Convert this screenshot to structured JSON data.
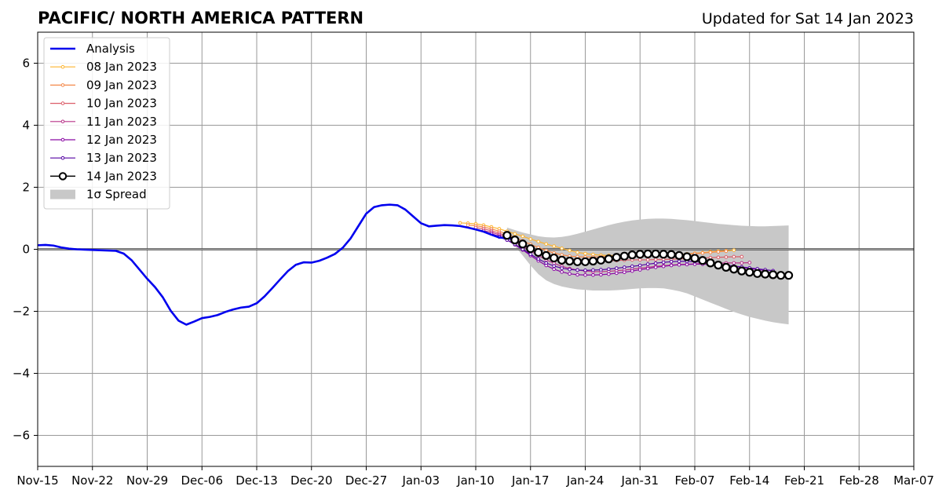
{
  "title": "PACIFIC/ NORTH AMERICA PATTERN",
  "subtitle": "Updated for Sat 14 Jan 2023",
  "chart_data": {
    "type": "line",
    "title": "PACIFIC/ NORTH AMERICA PATTERN",
    "subtitle": "Updated for Sat 14 Jan 2023",
    "xlabel": "",
    "ylabel": "",
    "xlim": [
      "2022-11-15",
      "2023-03-07"
    ],
    "ylim": [
      -7,
      7
    ],
    "x_ticks": [
      "Nov-15",
      "Nov-22",
      "Nov-29",
      "Dec-06",
      "Dec-13",
      "Dec-20",
      "Dec-27",
      "Jan-03",
      "Jan-10",
      "Jan-17",
      "Jan-24",
      "Jan-31",
      "Feb-07",
      "Feb-14",
      "Feb-21",
      "Feb-28",
      "Mar-07"
    ],
    "y_ticks": [
      "6",
      "4",
      "2",
      "0",
      "−2",
      "−4",
      "−6"
    ],
    "y_tick_values": [
      6,
      4,
      2,
      0,
      -2,
      -4,
      -6
    ],
    "grid": true,
    "legend_position": "top-left",
    "analysis": {
      "name": "Analysis",
      "color": "#0000ee",
      "start": "2022-11-15",
      "step_days": 1,
      "values": [
        0.13,
        0.14,
        0.12,
        0.06,
        0.02,
        0,
        -0.01,
        -0.02,
        -0.03,
        -0.04,
        -0.05,
        -0.14,
        -0.35,
        -0.65,
        -0.95,
        -1.22,
        -1.55,
        -1.98,
        -2.3,
        -2.43,
        -2.33,
        -2.22,
        -2.18,
        -2.12,
        -2.02,
        -1.94,
        -1.88,
        -1.85,
        -1.74,
        -1.52,
        -1.25,
        -0.97,
        -0.7,
        -0.5,
        -0.42,
        -0.43,
        -0.37,
        -0.27,
        -0.15,
        0.05,
        0.35,
        0.75,
        1.15,
        1.36,
        1.42,
        1.44,
        1.42,
        1.28,
        1.06,
        0.84,
        0.74,
        0.76,
        0.78,
        0.77,
        0.75,
        0.7,
        0.64,
        0.57,
        0.47,
        0.38,
        0.36,
        0.33
      ]
    },
    "forecasts": [
      {
        "name": "08 Jan 2023",
        "color": "#fdb42f",
        "start": "2023-01-08",
        "values": [
          0.85,
          0.84,
          0.82,
          0.78,
          0.72,
          0.66,
          0.58,
          0.5,
          0.42,
          0.33,
          0.25,
          0.17,
          0.1,
          0.03,
          -0.04,
          -0.1,
          -0.14,
          -0.17,
          -0.19,
          -0.2,
          -0.2,
          -0.19,
          -0.18,
          -0.17,
          -0.16,
          -0.16,
          -0.16,
          -0.16,
          -0.16,
          -0.15,
          -0.13,
          -0.11,
          -0.08,
          -0.06,
          -0.05,
          -0.03
        ]
      },
      {
        "name": "09 Jan 2023",
        "color": "#f48849",
        "start": "2023-01-09",
        "values": [
          0.78,
          0.76,
          0.72,
          0.66,
          0.58,
          0.49,
          0.38,
          0.27,
          0.16,
          0.06,
          -0.04,
          -0.12,
          -0.18,
          -0.22,
          -0.24,
          -0.25,
          -0.25,
          -0.24,
          -0.23,
          -0.22,
          -0.22,
          -0.22,
          -0.22,
          -0.21,
          -0.21,
          -0.2,
          -0.19,
          -0.18,
          -0.16,
          -0.14,
          -0.12,
          -0.1,
          -0.08,
          -0.06
        ]
      },
      {
        "name": "10 Jan 2023",
        "color": "#db5c68",
        "start": "2023-01-10",
        "values": [
          0.7,
          0.66,
          0.6,
          0.52,
          0.42,
          0.3,
          0.17,
          0.04,
          -0.08,
          -0.18,
          -0.26,
          -0.32,
          -0.36,
          -0.38,
          -0.39,
          -0.39,
          -0.38,
          -0.37,
          -0.36,
          -0.35,
          -0.34,
          -0.34,
          -0.34,
          -0.33,
          -0.33,
          -0.32,
          -0.31,
          -0.3,
          -0.29,
          -0.28,
          -0.27,
          -0.26,
          -0.25,
          -0.24,
          -0.24
        ]
      },
      {
        "name": "11 Jan 2023",
        "color": "#b83289",
        "start": "2023-01-11",
        "values": [
          0.6,
          0.55,
          0.47,
          0.37,
          0.24,
          0.1,
          -0.05,
          -0.2,
          -0.34,
          -0.45,
          -0.55,
          -0.62,
          -0.67,
          -0.7,
          -0.72,
          -0.72,
          -0.71,
          -0.69,
          -0.67,
          -0.64,
          -0.61,
          -0.58,
          -0.55,
          -0.53,
          -0.51,
          -0.49,
          -0.48,
          -0.47,
          -0.46,
          -0.45,
          -0.45,
          -0.44,
          -0.44,
          -0.44,
          -0.43
        ]
      },
      {
        "name": "12 Jan 2023",
        "color": "#8b0aa5",
        "start": "2023-01-12",
        "values": [
          0.5,
          0.42,
          0.3,
          0.15,
          -0.02,
          -0.2,
          -0.37,
          -0.52,
          -0.64,
          -0.73,
          -0.79,
          -0.82,
          -0.83,
          -0.83,
          -0.82,
          -0.8,
          -0.77,
          -0.74,
          -0.7,
          -0.66,
          -0.62,
          -0.58,
          -0.55,
          -0.52,
          -0.5,
          -0.49,
          -0.48,
          -0.48,
          -0.49,
          -0.5,
          -0.52,
          -0.55,
          -0.58,
          -0.62,
          -0.65,
          -0.68
        ]
      },
      {
        "name": "13 Jan 2023",
        "color": "#5402a3",
        "start": "2023-01-13",
        "values": [
          0.4,
          0.3,
          0.16,
          0.0,
          -0.16,
          -0.31,
          -0.44,
          -0.54,
          -0.61,
          -0.65,
          -0.67,
          -0.68,
          -0.67,
          -0.66,
          -0.64,
          -0.61,
          -0.58,
          -0.55,
          -0.52,
          -0.48,
          -0.45,
          -0.42,
          -0.4,
          -0.39,
          -0.39,
          -0.4,
          -0.42,
          -0.45,
          -0.48,
          -0.51,
          -0.54,
          -0.57,
          -0.6,
          -0.63,
          -0.66,
          -0.69
        ]
      },
      {
        "name": "14 Jan 2023",
        "color": "#000000",
        "start": "2023-01-14",
        "values": [
          0.45,
          0.3,
          0.17,
          0.02,
          -0.1,
          -0.2,
          -0.28,
          -0.35,
          -0.38,
          -0.4,
          -0.4,
          -0.38,
          -0.35,
          -0.31,
          -0.26,
          -0.22,
          -0.18,
          -0.16,
          -0.15,
          -0.15,
          -0.16,
          -0.17,
          -0.2,
          -0.24,
          -0.29,
          -0.36,
          -0.44,
          -0.51,
          -0.58,
          -0.64,
          -0.7,
          -0.74,
          -0.78,
          -0.8,
          -0.82,
          -0.84,
          -0.84
        ]
      }
    ],
    "spread": {
      "name": "1σ Spread",
      "color": "#c8c8c8",
      "start": "2023-01-14",
      "upper": [
        0.7,
        0.62,
        0.54,
        0.48,
        0.42,
        0.39,
        0.38,
        0.4,
        0.44,
        0.5,
        0.57,
        0.64,
        0.71,
        0.78,
        0.84,
        0.89,
        0.93,
        0.96,
        0.98,
        0.99,
        0.99,
        0.98,
        0.96,
        0.94,
        0.91,
        0.88,
        0.85,
        0.82,
        0.8,
        0.78,
        0.76,
        0.75,
        0.74,
        0.74,
        0.75,
        0.76,
        0.77
      ],
      "lower": [
        0.35,
        0.1,
        -0.2,
        -0.52,
        -0.8,
        -1.0,
        -1.12,
        -1.2,
        -1.25,
        -1.29,
        -1.31,
        -1.33,
        -1.33,
        -1.33,
        -1.32,
        -1.3,
        -1.28,
        -1.26,
        -1.25,
        -1.25,
        -1.26,
        -1.3,
        -1.35,
        -1.42,
        -1.52,
        -1.62,
        -1.72,
        -1.82,
        -1.92,
        -2.02,
        -2.1,
        -2.18,
        -2.24,
        -2.3,
        -2.35,
        -2.39,
        -2.42
      ]
    }
  }
}
